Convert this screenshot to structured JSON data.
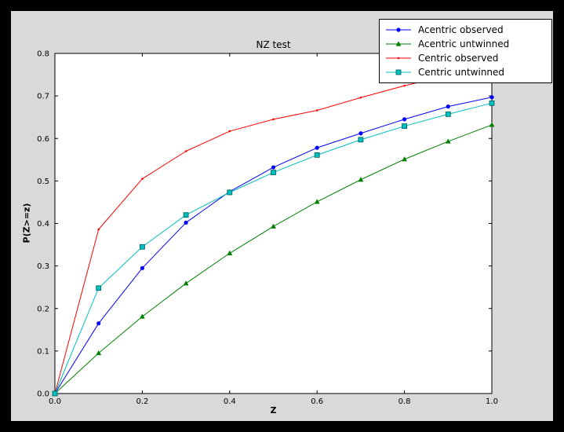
{
  "figure": {
    "background": "#000000",
    "canvas_color": "#d9d9d9",
    "plot_bg": "#ffffff"
  },
  "chart_data": {
    "type": "line",
    "title": "NZ test",
    "xlabel": "Z",
    "ylabel": "P(Z>=z)",
    "xlim": [
      0.0,
      1.0
    ],
    "ylim": [
      0.0,
      0.8
    ],
    "grid": false,
    "legend_position": "upper right",
    "xticks": [
      "0.0",
      "0.2",
      "0.4",
      "0.6",
      "0.8",
      "1.0"
    ],
    "yticks": [
      "0.0",
      "0.1",
      "0.2",
      "0.3",
      "0.4",
      "0.5",
      "0.6",
      "0.7",
      "0.8"
    ],
    "x": [
      0.0,
      0.1,
      0.2,
      0.3,
      0.4,
      0.5,
      0.6,
      0.7,
      0.8,
      0.9,
      1.0
    ],
    "series": [
      {
        "name": "Acentric observed",
        "color": "#0000ff",
        "marker": "circle",
        "values": [
          0.0,
          0.165,
          0.295,
          0.402,
          0.475,
          0.532,
          0.578,
          0.612,
          0.645,
          0.675,
          0.697
        ]
      },
      {
        "name": "Acentric untwinned",
        "color": "#007f00",
        "marker": "triangle",
        "values": [
          0.0,
          0.095,
          0.181,
          0.259,
          0.33,
          0.393,
          0.451,
          0.503,
          0.551,
          0.593,
          0.632
        ]
      },
      {
        "name": "Centric observed",
        "color": "#ff0000",
        "marker": "dot",
        "values": [
          0.0,
          0.386,
          0.505,
          0.57,
          0.617,
          0.645,
          0.666,
          0.696,
          0.724,
          0.748,
          0.766
        ]
      },
      {
        "name": "Centric untwinned",
        "color": "#00bfbf",
        "marker": "square",
        "values": [
          0.0,
          0.248,
          0.345,
          0.42,
          0.473,
          0.52,
          0.561,
          0.597,
          0.629,
          0.657,
          0.683
        ]
      }
    ]
  }
}
